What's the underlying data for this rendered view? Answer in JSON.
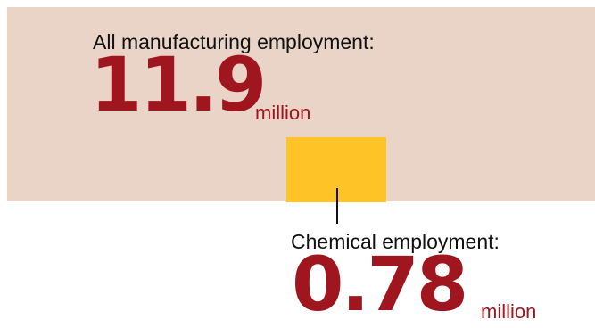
{
  "colors": {
    "manufacturing_area": "#ead4c8",
    "chemical_area": "#fec427",
    "value_text": "#a0161e",
    "label_text": "#111111"
  },
  "manufacturing": {
    "label": "All manufacturing employment:",
    "value": "11.9",
    "unit": "million"
  },
  "chemical": {
    "label": "Chemical employment:",
    "value": "0.78",
    "unit": "million"
  }
}
